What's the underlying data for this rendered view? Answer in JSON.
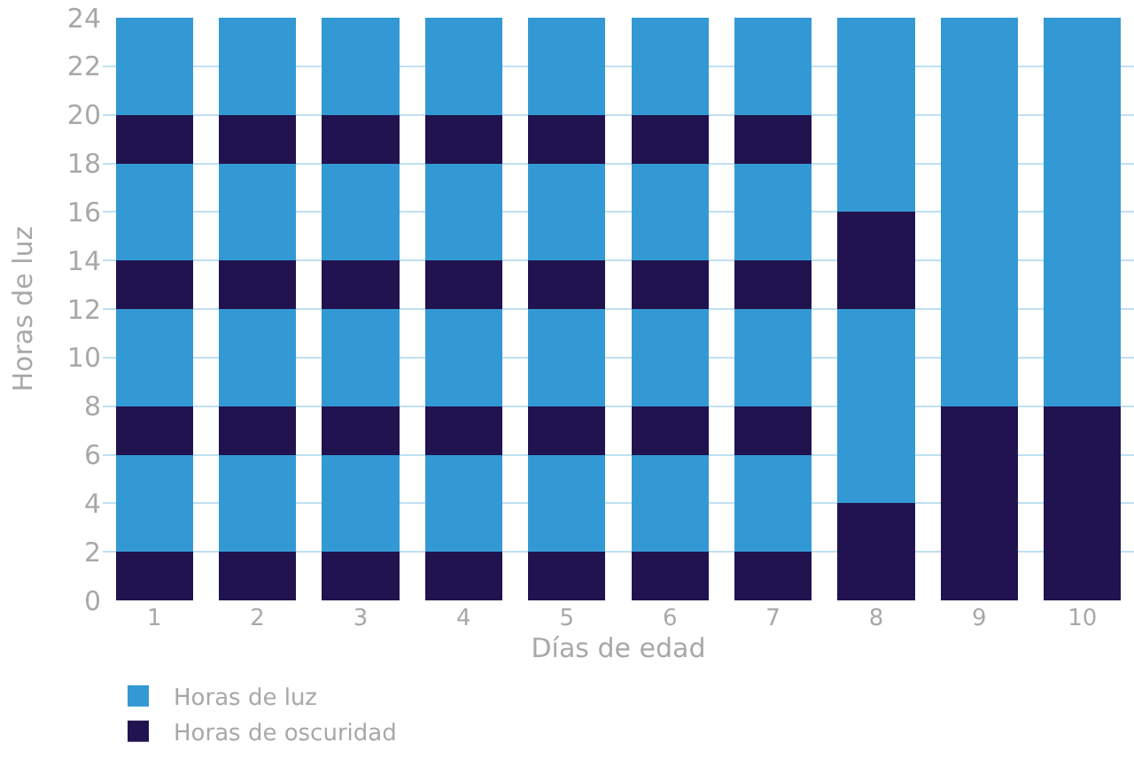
{
  "chart_data": {
    "type": "bar",
    "stacked": true,
    "xlabel": "Días de edad",
    "ylabel": "Horas de luz",
    "categories": [
      "1",
      "2",
      "3",
      "4",
      "5",
      "6",
      "7",
      "8",
      "9",
      "10"
    ],
    "ylim": [
      0,
      24
    ],
    "yticks": [
      0,
      2,
      4,
      6,
      8,
      10,
      12,
      14,
      16,
      18,
      20,
      22,
      24
    ],
    "grid": "y",
    "legend": "bottom left",
    "series": [
      {
        "name": "Horas de oscuridad",
        "color": "#21134f",
        "values": [
          2,
          2,
          2,
          2,
          2,
          2,
          2,
          4,
          8,
          8
        ]
      },
      {
        "name": "Horas de luz",
        "color": "#3399d4",
        "values": [
          4,
          4,
          4,
          4,
          4,
          4,
          4,
          8,
          16,
          16
        ]
      },
      {
        "color": "#21134f",
        "values": [
          2,
          2,
          2,
          2,
          2,
          2,
          2,
          4,
          null,
          null
        ]
      },
      {
        "color": "#3399d4",
        "values": [
          4,
          4,
          4,
          4,
          4,
          4,
          4,
          8,
          null,
          null
        ]
      },
      {
        "color": "#21134f",
        "values": [
          2,
          2,
          2,
          2,
          2,
          2,
          2,
          null,
          null,
          null
        ]
      },
      {
        "color": "#3399d4",
        "values": [
          4,
          4,
          4,
          4,
          4,
          4,
          4,
          null,
          null,
          null
        ]
      },
      {
        "color": "#21134f",
        "values": [
          2,
          2,
          2,
          2,
          2,
          2,
          2,
          null,
          null,
          null
        ]
      },
      {
        "color": "#3399d4",
        "values": [
          4,
          4,
          4,
          4,
          4,
          4,
          4,
          null,
          null,
          null
        ]
      }
    ]
  }
}
